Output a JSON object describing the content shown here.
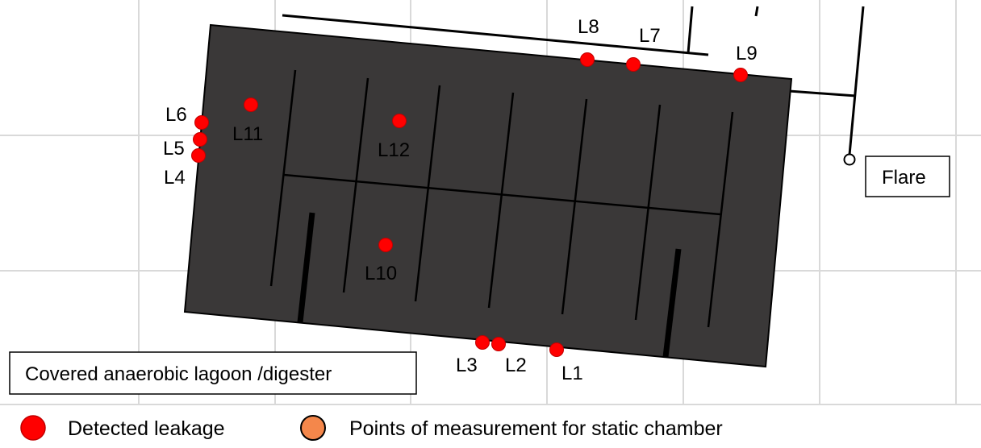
{
  "colors": {
    "background": "#ffffff",
    "grid": "#d9d9d9",
    "lagoon_fill": "#3a3838",
    "lagoon_stroke": "#000000",
    "leak": "#ff0000",
    "leak_stroke": "#c00000",
    "static_chamber": "#f4874b",
    "static_chamber_stroke": "#000000"
  },
  "labels": {
    "lagoon": "Covered anaerobic lagoon /digester",
    "flare": "Flare"
  },
  "leaks": [
    {
      "id": "L1",
      "label": "L1"
    },
    {
      "id": "L2",
      "label": "L2"
    },
    {
      "id": "L3",
      "label": "L3"
    },
    {
      "id": "L4",
      "label": "L4"
    },
    {
      "id": "L5",
      "label": "L5"
    },
    {
      "id": "L6",
      "label": "L6"
    },
    {
      "id": "L7",
      "label": "L7"
    },
    {
      "id": "L8",
      "label": "L8"
    },
    {
      "id": "L9",
      "label": "L9"
    },
    {
      "id": "L10",
      "label": "L10"
    },
    {
      "id": "L11",
      "label": "L11"
    },
    {
      "id": "L12",
      "label": "L12"
    }
  ],
  "legend": {
    "detected_leakage": "Detected leakage",
    "static_chamber": "Points of measurement for static chamber"
  }
}
